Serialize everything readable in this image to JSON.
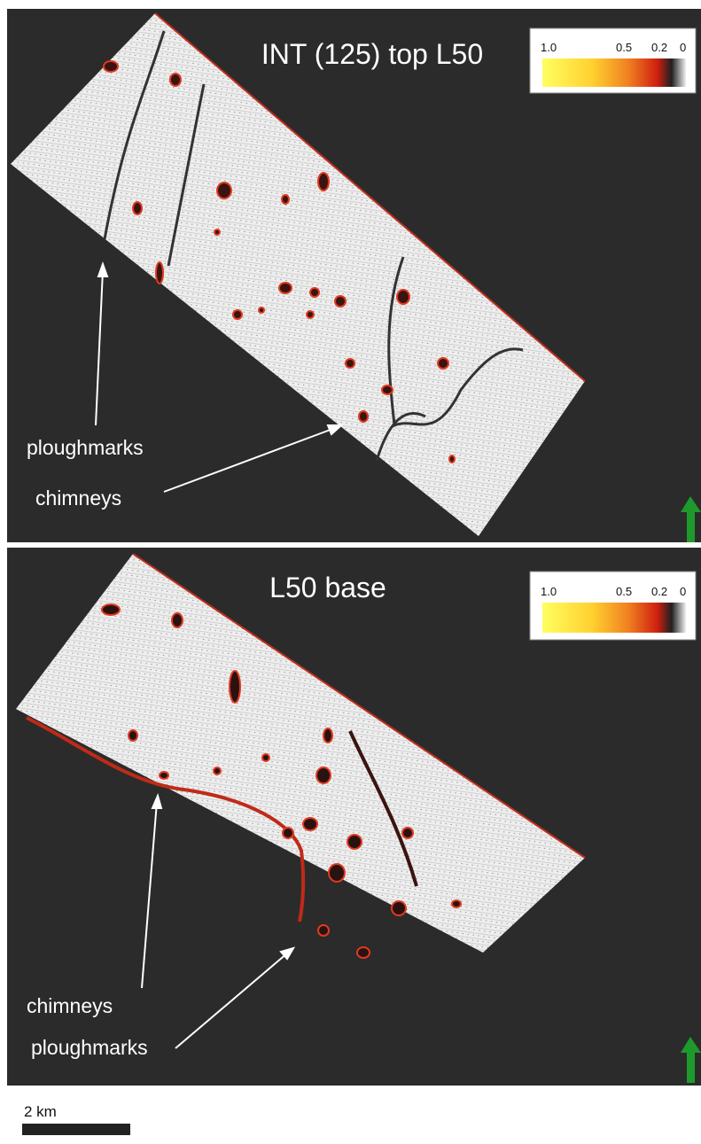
{
  "panels": [
    {
      "title": "INT (125) top L50",
      "colorbar": {
        "ticks": [
          "1.0",
          "0.5",
          "0.2",
          "0"
        ]
      },
      "annotations": [
        "ploughmarks",
        "chimneys"
      ]
    },
    {
      "title": "L50 base",
      "colorbar": {
        "ticks": [
          "1.0",
          "0.5",
          "0.2",
          "0"
        ]
      },
      "annotations": [
        "chimneys",
        "ploughmarks"
      ]
    }
  ],
  "scale_bar": {
    "label": "2 km"
  }
}
